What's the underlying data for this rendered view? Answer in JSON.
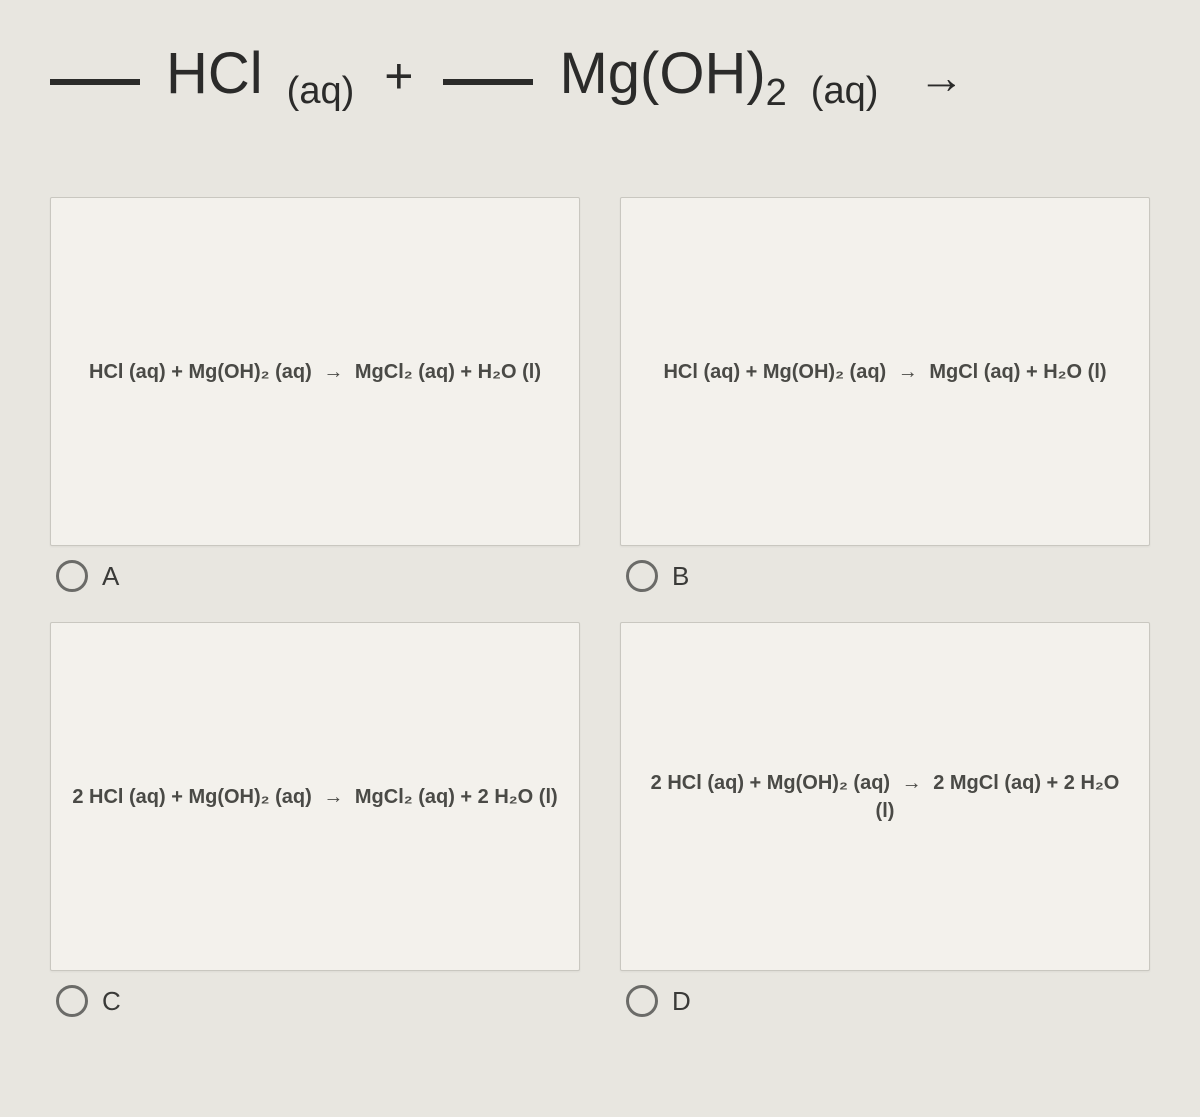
{
  "equation": {
    "term1_formula": "HCl",
    "term1_state": "(aq)",
    "plus": "+",
    "term2_formula": "Mg(OH)",
    "term2_sub": "2",
    "term2_state": "(aq)",
    "arrow": "→"
  },
  "options": {
    "a": {
      "label": "A",
      "lhs": "HCl (aq) + Mg(OH)₂ (aq)",
      "rhs": "MgCl₂ (aq) + H₂O (l)"
    },
    "b": {
      "label": "B",
      "lhs": "HCl (aq) + Mg(OH)₂ (aq)",
      "rhs": "MgCl (aq) + H₂O (l)"
    },
    "c": {
      "label": "C",
      "lhs": "2 HCl (aq) + Mg(OH)₂ (aq)",
      "rhs": "MgCl₂ (aq) + 2 H₂O (l)"
    },
    "d": {
      "label": "D",
      "lhs": "2 HCl (aq) + Mg(OH)₂ (aq)",
      "rhs": "2 MgCl (aq) + 2 H₂O (l)"
    }
  }
}
